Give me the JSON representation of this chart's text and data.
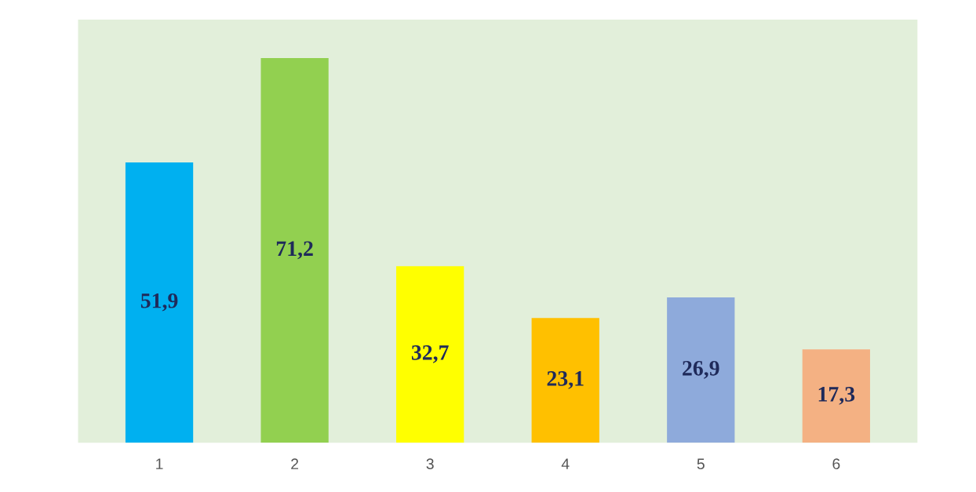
{
  "chart_data": {
    "type": "bar",
    "categories": [
      "1",
      "2",
      "3",
      "4",
      "5",
      "6"
    ],
    "values": [
      51.9,
      71.2,
      32.7,
      23.1,
      26.9,
      17.3
    ],
    "colors": [
      "#00b0f0",
      "#92d050",
      "#ffff00",
      "#ffc000",
      "#8eaadb",
      "#f4b183"
    ],
    "value_labels": [
      "51,9",
      "71,2",
      "32,7",
      "23,1",
      "26,9",
      "17,3"
    ],
    "grid": false,
    "legend": false
  }
}
